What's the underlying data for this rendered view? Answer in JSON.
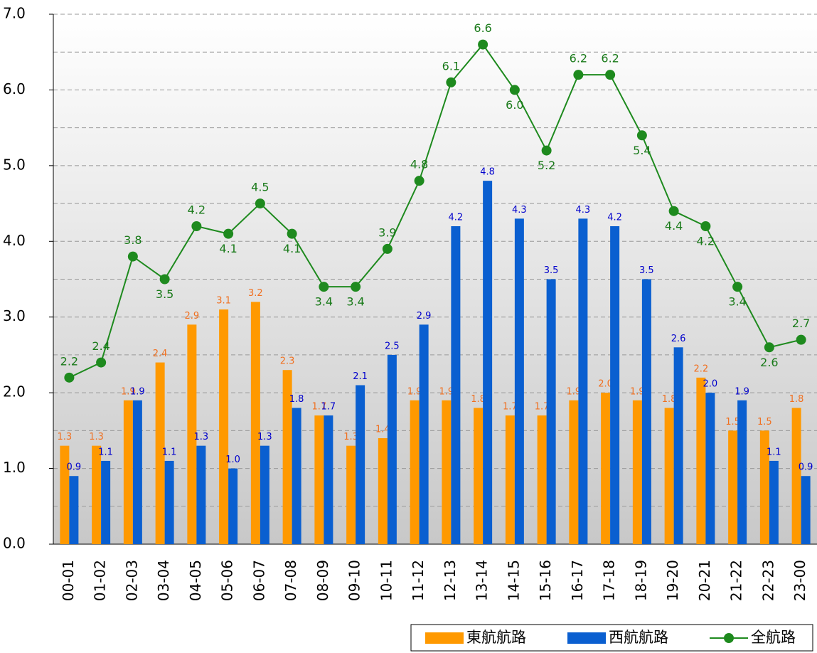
{
  "chart_data": {
    "type": "bar-line",
    "categories": [
      "00-01",
      "01-02",
      "02-03",
      "03-04",
      "04-05",
      "05-06",
      "06-07",
      "07-08",
      "08-09",
      "09-10",
      "10-11",
      "11-12",
      "12-13",
      "13-14",
      "14-15",
      "15-16",
      "16-17",
      "17-18",
      "18-19",
      "19-20",
      "20-21",
      "21-22",
      "22-23",
      "23-00"
    ],
    "series": [
      {
        "name": "東航航路",
        "type": "bar",
        "color": "#ff9900",
        "label_color": "#f07020",
        "values": [
          1.3,
          1.3,
          1.9,
          2.4,
          2.9,
          3.1,
          3.2,
          2.3,
          1.7,
          1.3,
          1.4,
          1.9,
          1.9,
          1.8,
          1.7,
          1.7,
          1.9,
          2.0,
          1.9,
          1.8,
          2.2,
          1.5,
          1.5,
          1.8
        ],
        "value_labels": [
          "1.3",
          "1.3",
          "1.9",
          "2.4",
          "2.9",
          "3.1",
          "3.2",
          "2.3",
          "1.7",
          "1.3",
          "1.4",
          "1.9",
          "1.9",
          "1.8",
          "1.7",
          "1.7",
          "1.9",
          "2.0",
          "1.9",
          "1.8",
          "2.2",
          "1.5",
          "1.5",
          "1.8"
        ]
      },
      {
        "name": "西航航路",
        "type": "bar",
        "color": "#0a5fd0",
        "label_color": "#0000cc",
        "values": [
          0.9,
          1.1,
          1.9,
          1.1,
          1.3,
          1.0,
          1.3,
          1.8,
          1.7,
          2.1,
          2.5,
          2.9,
          4.2,
          4.8,
          4.3,
          3.5,
          4.3,
          4.2,
          3.5,
          2.6,
          2.0,
          1.9,
          1.1,
          0.9
        ],
        "value_labels": [
          "0.9",
          "1.1",
          "1.9",
          "1.1",
          "1.3",
          "1.0",
          "1.3",
          "1.8",
          "1.7",
          "2.1",
          "2.5",
          "2.9",
          "4.2",
          "4.8",
          "4.3",
          "3.5",
          "4.3",
          "4.2",
          "3.5",
          "2.6",
          "2.0",
          "1.9",
          "1.1",
          "0.9"
        ]
      },
      {
        "name": "全航路",
        "type": "line",
        "color": "#1e8a1e",
        "label_color": "#1a7a1a",
        "values": [
          2.2,
          2.4,
          3.8,
          3.5,
          4.2,
          4.1,
          4.5,
          4.1,
          3.4,
          3.4,
          3.9,
          4.8,
          6.1,
          6.6,
          6.0,
          5.2,
          6.2,
          6.2,
          5.4,
          4.4,
          4.2,
          3.4,
          2.6,
          2.7
        ],
        "value_labels": [
          "2.2",
          "2.4",
          "3.8",
          "3.5",
          "4.2",
          "4.1",
          "4.5",
          "4.1",
          "3.4",
          "3.4",
          "3.9",
          "4.8",
          "6.1",
          "6.6",
          "6.0",
          "5.2",
          "6.2",
          "6.2",
          "5.4",
          "4.4",
          "4.2",
          "3.4",
          "2.6",
          "2.7"
        ]
      }
    ],
    "ylim": [
      0,
      7
    ],
    "yticks": [
      {
        "value": 0,
        "label": "0.0"
      },
      {
        "value": 1,
        "label": "1.0"
      },
      {
        "value": 2,
        "label": "2.0"
      },
      {
        "value": 3,
        "label": "3.0"
      },
      {
        "value": 4,
        "label": "4.0"
      },
      {
        "value": 5,
        "label": "5.0"
      },
      {
        "value": 6,
        "label": "6.0"
      },
      {
        "value": 7,
        "label": "7.0"
      }
    ],
    "minor_yticks": [
      0.5,
      1.5,
      2.5,
      3.5,
      4.5,
      5.5,
      6.5
    ],
    "grid": true,
    "legend": "bottom-right"
  }
}
